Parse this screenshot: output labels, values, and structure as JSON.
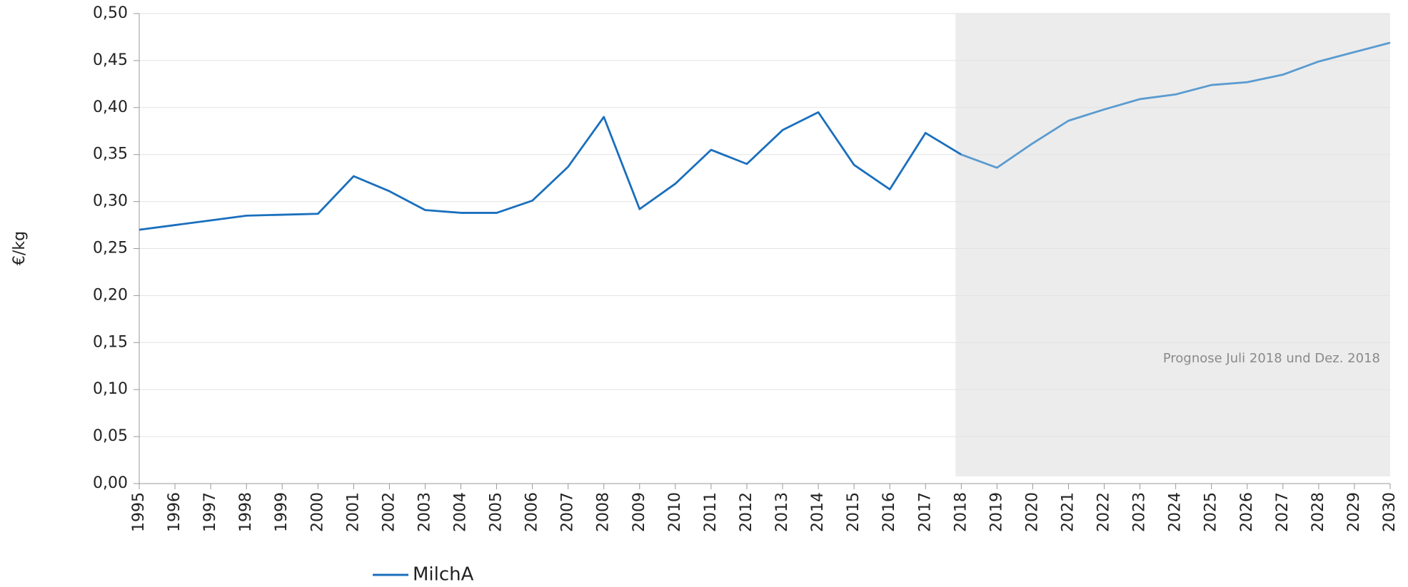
{
  "chart_data": {
    "type": "line",
    "y_label": "€/kg",
    "x": [
      1995,
      1996,
      1997,
      1998,
      1999,
      2000,
      2001,
      2002,
      2003,
      2004,
      2005,
      2006,
      2007,
      2008,
      2009,
      2010,
      2011,
      2012,
      2013,
      2014,
      2015,
      2016,
      2017,
      2018,
      2019,
      2020,
      2021,
      2022,
      2023,
      2024,
      2025,
      2026,
      2027,
      2028,
      2029,
      2030
    ],
    "series": [
      {
        "name": "MilchA",
        "color": "#1a6fbd",
        "forecast_color": "#5a9bd0",
        "values": [
          0.27,
          0.275,
          0.28,
          0.285,
          0.286,
          0.287,
          0.327,
          0.311,
          0.291,
          0.288,
          0.288,
          0.301,
          0.337,
          0.39,
          0.292,
          0.319,
          0.355,
          0.34,
          0.376,
          0.395,
          0.339,
          0.313,
          0.373,
          0.35,
          0.336,
          0.362,
          0.386,
          0.398,
          0.409,
          0.414,
          0.424,
          0.427,
          0.435,
          0.449,
          0.459,
          0.469
        ]
      }
    ],
    "forecast_from": 2018,
    "annotation": {
      "text": "Prognose Juli 2018 und Dez. 2018",
      "xrange": [
        2017.84,
        2030
      ],
      "color": "#ececec"
    },
    "xlim": [
      1995,
      2030
    ],
    "xticks": [
      1995,
      1996,
      1997,
      1998,
      1999,
      2000,
      2001,
      2002,
      2003,
      2004,
      2005,
      2006,
      2007,
      2008,
      2009,
      2010,
      2011,
      2012,
      2013,
      2014,
      2015,
      2016,
      2017,
      2018,
      2019,
      2020,
      2021,
      2022,
      2023,
      2024,
      2025,
      2026,
      2027,
      2028,
      2029,
      2030
    ],
    "ylim": [
      0,
      0.5
    ],
    "yticks": [
      {
        "value": 0,
        "label": "0,00"
      },
      {
        "value": 0.05,
        "label": "0,05"
      },
      {
        "value": 0.1,
        "label": "0,10"
      },
      {
        "value": 0.15,
        "label": "0,15"
      },
      {
        "value": 0.2,
        "label": "0,20"
      },
      {
        "value": 0.25,
        "label": "0,25"
      },
      {
        "value": 0.3,
        "label": "0,30"
      },
      {
        "value": 0.35,
        "label": "0,35"
      },
      {
        "value": 0.4,
        "label": "0,40"
      },
      {
        "value": 0.45,
        "label": "0,45"
      },
      {
        "value": 0.5,
        "label": "0,50"
      }
    ],
    "grid": true,
    "legend": "bottom"
  }
}
